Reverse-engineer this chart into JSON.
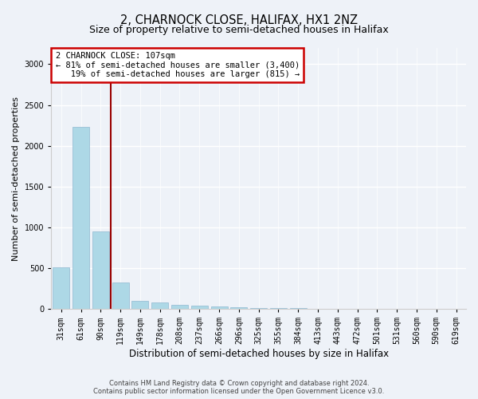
{
  "title": "2, CHARNOCK CLOSE, HALIFAX, HX1 2NZ",
  "subtitle": "Size of property relative to semi-detached houses in Halifax",
  "xlabel": "Distribution of semi-detached houses by size in Halifax",
  "ylabel": "Number of semi-detached properties",
  "categories": [
    "31sqm",
    "61sqm",
    "90sqm",
    "119sqm",
    "149sqm",
    "178sqm",
    "208sqm",
    "237sqm",
    "266sqm",
    "296sqm",
    "325sqm",
    "355sqm",
    "384sqm",
    "413sqm",
    "443sqm",
    "472sqm",
    "501sqm",
    "531sqm",
    "560sqm",
    "590sqm",
    "619sqm"
  ],
  "values": [
    510,
    2230,
    950,
    320,
    95,
    80,
    55,
    40,
    30,
    20,
    15,
    10,
    8,
    5,
    4,
    3,
    2,
    2,
    1,
    1,
    1
  ],
  "bar_color": "#add8e6",
  "bar_edge_color": "#90b8d0",
  "vline_color": "#990000",
  "annotation_text": "2 CHARNOCK CLOSE: 107sqm\n← 81% of semi-detached houses are smaller (3,400)\n   19% of semi-detached houses are larger (815) →",
  "annotation_box_color": "#ffffff",
  "annotation_box_edge_color": "#cc0000",
  "ylim": [
    0,
    3200
  ],
  "yticks": [
    0,
    500,
    1000,
    1500,
    2000,
    2500,
    3000
  ],
  "background_color": "#eef2f8",
  "grid_color": "#ffffff",
  "title_fontsize": 10.5,
  "subtitle_fontsize": 9,
  "xlabel_fontsize": 8.5,
  "ylabel_fontsize": 8,
  "tick_fontsize": 7,
  "annot_fontsize": 7.5,
  "footer_text": "Contains HM Land Registry data © Crown copyright and database right 2024.\nContains public sector information licensed under the Open Government Licence v3.0."
}
